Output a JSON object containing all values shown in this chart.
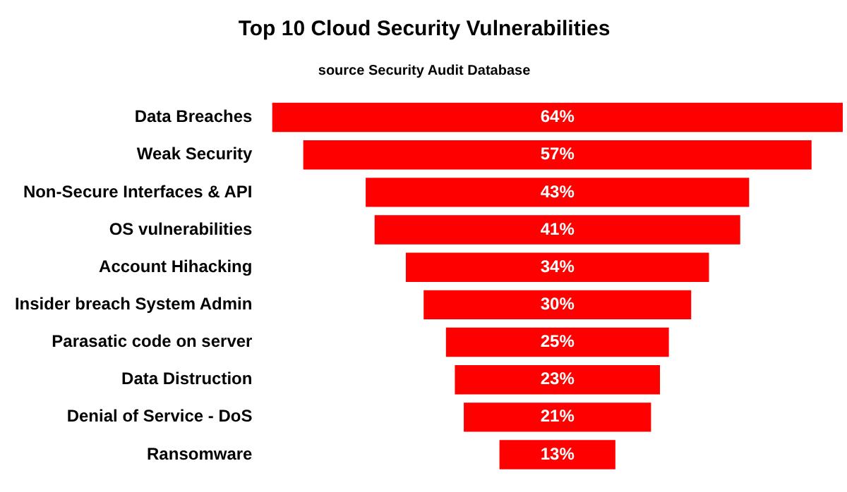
{
  "chart_data": {
    "type": "other",
    "title": "Top 10 Cloud Security Vulnerabilities",
    "subtitle": "source Security Audit Database",
    "categories": [
      "Data Breaches",
      "Weak Security",
      "Non-Secure Interfaces & API",
      "OS vulnerabilities",
      "Account Hihacking",
      "Insider breach System Admin",
      "Parasatic code on server",
      "Data Distruction",
      "Denial of Service - DoS",
      "Ransomware"
    ],
    "values": [
      64,
      57,
      43,
      41,
      34,
      30,
      25,
      23,
      21,
      13
    ],
    "value_labels": [
      "64%",
      "57%",
      "43%",
      "41%",
      "34%",
      "30%",
      "25%",
      "23%",
      "21%",
      "13%"
    ],
    "color": "#ff0000"
  }
}
